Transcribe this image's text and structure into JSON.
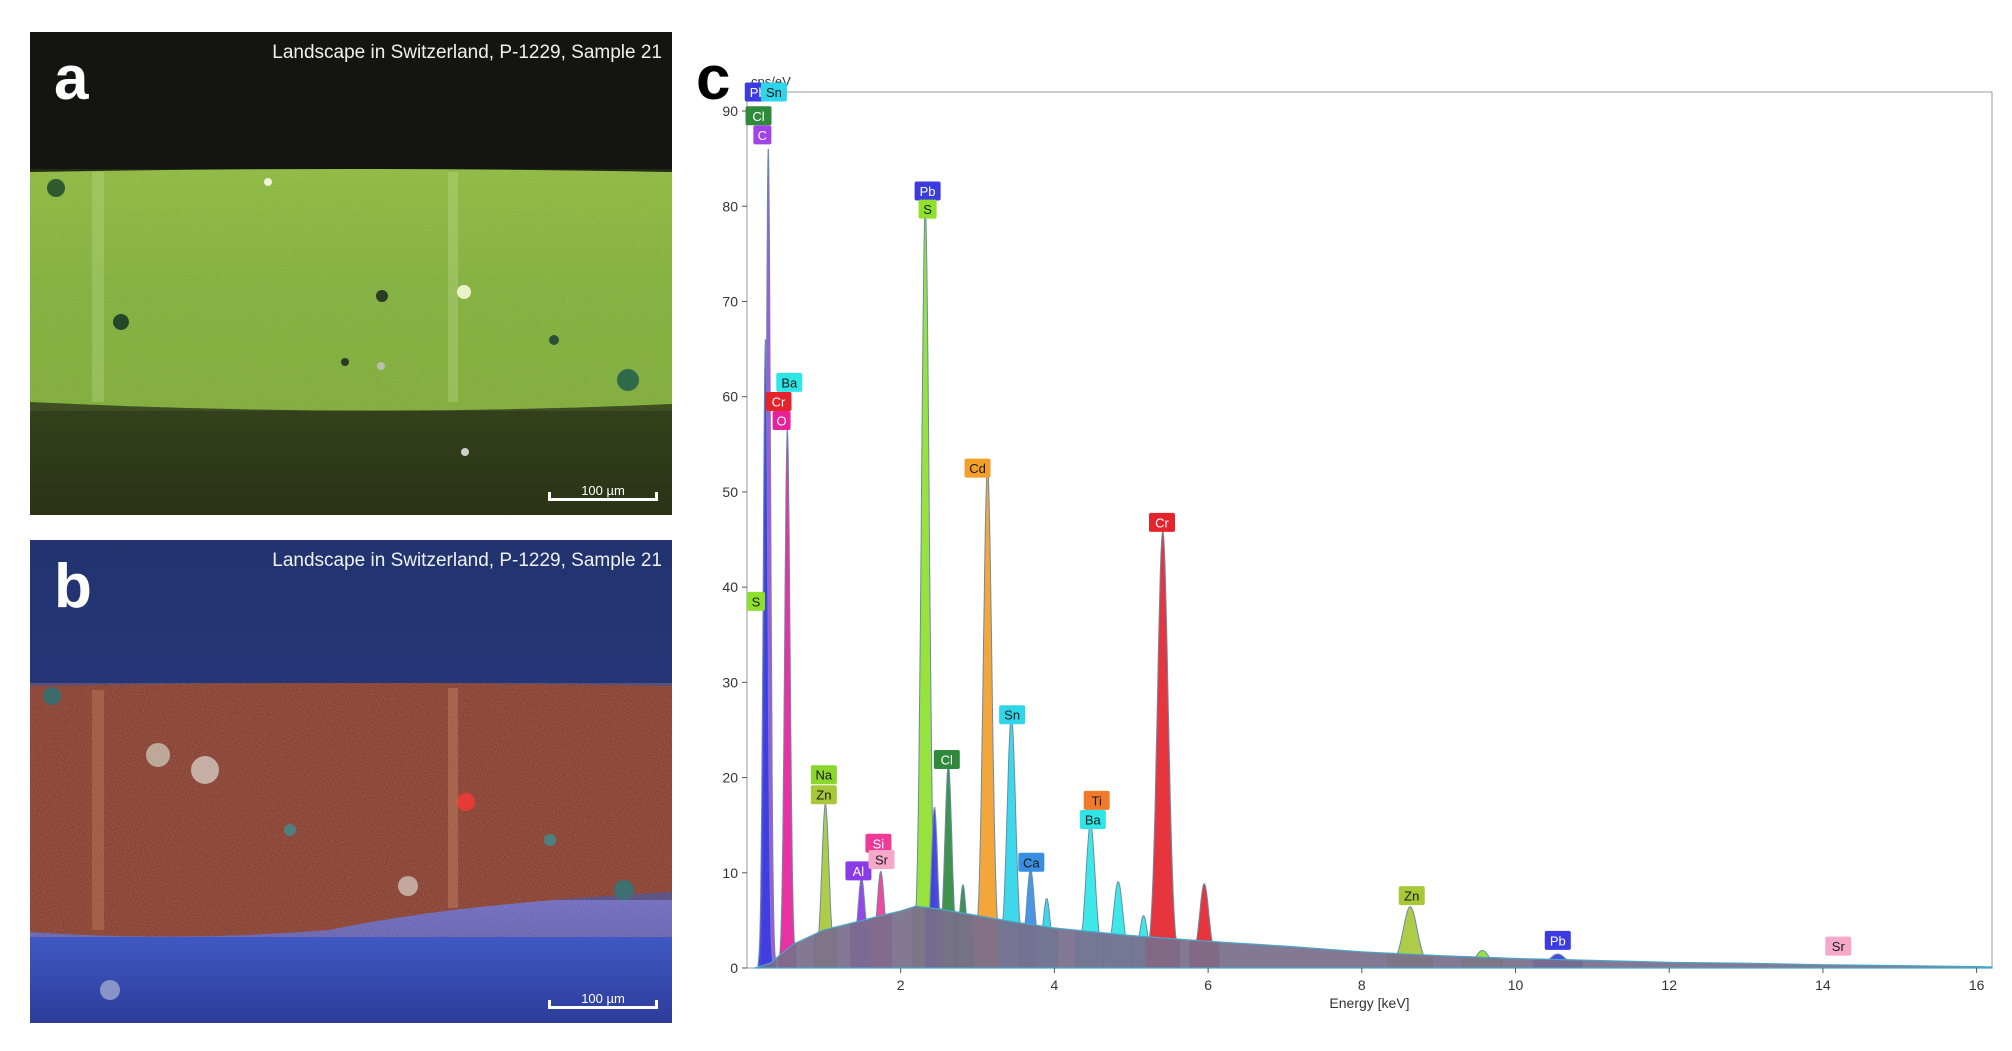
{
  "panels": {
    "a": {
      "letter": "a",
      "caption": "Landscape in Switzerland, P-1229, Sample 21",
      "scale_label": "100 µm"
    },
    "b": {
      "letter": "b",
      "caption": "Landscape in Switzerland, P-1229, Sample 21",
      "scale_label": "100 µm"
    },
    "c": {
      "letter": "c"
    }
  },
  "colors": {
    "Pb": "#3b3bdf",
    "Sn": "#2fd5e8",
    "O": "#e8209a",
    "C": "#a043e8",
    "S": "#8ee02c",
    "Ba": "#2fe6e6",
    "Cr": "#e4242c",
    "Cd": "#f2a02a",
    "Na": "#8ad62c",
    "Zn": "#a8c83a",
    "Cl": "#2f8a3c",
    "Ti": "#f07a2a",
    "Ca": "#3a8ee0",
    "Si": "#f03a9a",
    "Sr": "#f5a8c8",
    "Al": "#8a3ae6",
    "background": "#7a6e8c"
  },
  "chart_data": {
    "type": "line",
    "title": "",
    "xlabel": "Energy [keV]",
    "ylabel": "cps/eV",
    "xlim": [
      0,
      16.2
    ],
    "ylim": [
      0,
      92
    ],
    "xticks": [
      2,
      4,
      6,
      8,
      10,
      12,
      14,
      16
    ],
    "yticks": [
      0,
      10,
      20,
      30,
      40,
      50,
      60,
      70,
      80,
      90
    ],
    "background_continuum": [
      [
        0.1,
        0
      ],
      [
        0.3,
        0.5
      ],
      [
        0.6,
        2.5
      ],
      [
        1.0,
        4.0
      ],
      [
        1.5,
        5.0
      ],
      [
        2.0,
        6.0
      ],
      [
        2.2,
        6.5
      ],
      [
        2.5,
        6.2
      ],
      [
        3.0,
        5.5
      ],
      [
        3.5,
        4.8
      ],
      [
        4.0,
        4.2
      ],
      [
        5.0,
        3.4
      ],
      [
        6.0,
        2.8
      ],
      [
        7.0,
        2.3
      ],
      [
        8.0,
        1.7
      ],
      [
        9.0,
        1.3
      ],
      [
        10.0,
        1.0
      ],
      [
        11.0,
        0.8
      ],
      [
        12.0,
        0.6
      ],
      [
        13.0,
        0.5
      ],
      [
        14.0,
        0.35
      ],
      [
        15.0,
        0.25
      ],
      [
        16.0,
        0.15
      ],
      [
        16.2,
        0.1
      ]
    ],
    "peaks": [
      {
        "element": "C",
        "energy": 0.277,
        "height": 86,
        "width": 0.03
      },
      {
        "element": "C-edge",
        "energy": 0.24,
        "height": 66,
        "width": 0.03
      },
      {
        "element": "O",
        "energy": 0.525,
        "height": 56,
        "width": 0.035
      },
      {
        "element": "Na/Zn",
        "energy": 1.02,
        "height": 16,
        "width": 0.045
      },
      {
        "element": "Al",
        "energy": 1.49,
        "height": 8,
        "width": 0.045
      },
      {
        "element": "Si/Sr",
        "energy": 1.74,
        "height": 8.5,
        "width": 0.045
      },
      {
        "element": "Pb/S",
        "energy": 2.32,
        "height": 78,
        "width": 0.05
      },
      {
        "element": "Pb-M",
        "energy": 2.44,
        "height": 15,
        "width": 0.04
      },
      {
        "element": "Cl",
        "energy": 2.62,
        "height": 19.5,
        "width": 0.045
      },
      {
        "element": "Cl-b",
        "energy": 2.81,
        "height": 7,
        "width": 0.04
      },
      {
        "element": "Cd",
        "energy": 3.13,
        "height": 51,
        "width": 0.055
      },
      {
        "element": "Sn",
        "energy": 3.44,
        "height": 25,
        "width": 0.055
      },
      {
        "element": "Ca",
        "energy": 3.69,
        "height": 9,
        "width": 0.05
      },
      {
        "element": "Sn-b",
        "energy": 3.9,
        "height": 6,
        "width": 0.045
      },
      {
        "element": "Ba/Ti",
        "energy": 4.47,
        "height": 14,
        "width": 0.06
      },
      {
        "element": "Ba-b",
        "energy": 4.83,
        "height": 8,
        "width": 0.06
      },
      {
        "element": "Ba-g",
        "energy": 5.16,
        "height": 4.5,
        "width": 0.05
      },
      {
        "element": "Cr",
        "energy": 5.41,
        "height": 45,
        "width": 0.07
      },
      {
        "element": "Cr-Kb",
        "energy": 5.95,
        "height": 8,
        "width": 0.06
      },
      {
        "element": "Zn",
        "energy": 8.63,
        "height": 6,
        "width": 0.09
      },
      {
        "element": "Zn-b",
        "energy": 9.57,
        "height": 1.5,
        "width": 0.08
      },
      {
        "element": "Pb-L",
        "energy": 10.55,
        "height": 1.2,
        "width": 0.1
      }
    ],
    "annotations": [
      {
        "label": "Pb",
        "energy": 0.14,
        "y": 92.0
      },
      {
        "label": "Sn",
        "energy": 0.35,
        "y": 92.0
      },
      {
        "label": "Cl",
        "energy": 0.15,
        "y": 89.5
      },
      {
        "label": "C",
        "energy": 0.2,
        "y": 87.5
      },
      {
        "label": "Ba",
        "energy": 0.55,
        "y": 61.5
      },
      {
        "label": "Cr",
        "energy": 0.41,
        "y": 59.5
      },
      {
        "label": "O",
        "energy": 0.45,
        "y": 57.5
      },
      {
        "label": "S",
        "energy": 0.0,
        "y": 38.5
      },
      {
        "label": "Na",
        "energy": 1.0,
        "y": 20.3
      },
      {
        "label": "Zn",
        "energy": 1.0,
        "y": 18.2
      },
      {
        "label": "Al",
        "energy": 1.45,
        "y": 10.2
      },
      {
        "label": "Si",
        "energy": 1.71,
        "y": 13.1
      },
      {
        "label": "Sr",
        "energy": 1.75,
        "y": 11.4
      },
      {
        "label": "Pb",
        "energy": 2.35,
        "y": 81.6
      },
      {
        "label": "S",
        "energy": 2.35,
        "y": 79.7
      },
      {
        "label": "Cl",
        "energy": 2.6,
        "y": 21.9
      },
      {
        "label": "Cd",
        "energy": 3.0,
        "y": 52.5
      },
      {
        "label": "Sn",
        "energy": 3.45,
        "y": 26.6
      },
      {
        "label": "Ca",
        "energy": 3.7,
        "y": 11.1
      },
      {
        "label": "Ti",
        "energy": 4.55,
        "y": 17.6
      },
      {
        "label": "Ba",
        "energy": 4.5,
        "y": 15.6
      },
      {
        "label": "Cr",
        "energy": 5.4,
        "y": 46.8
      },
      {
        "label": "Zn",
        "energy": 8.65,
        "y": 7.6
      },
      {
        "label": "Pb",
        "energy": 10.55,
        "y": 2.9
      },
      {
        "label": "Sr",
        "energy": 14.2,
        "y": 2.3
      }
    ]
  }
}
